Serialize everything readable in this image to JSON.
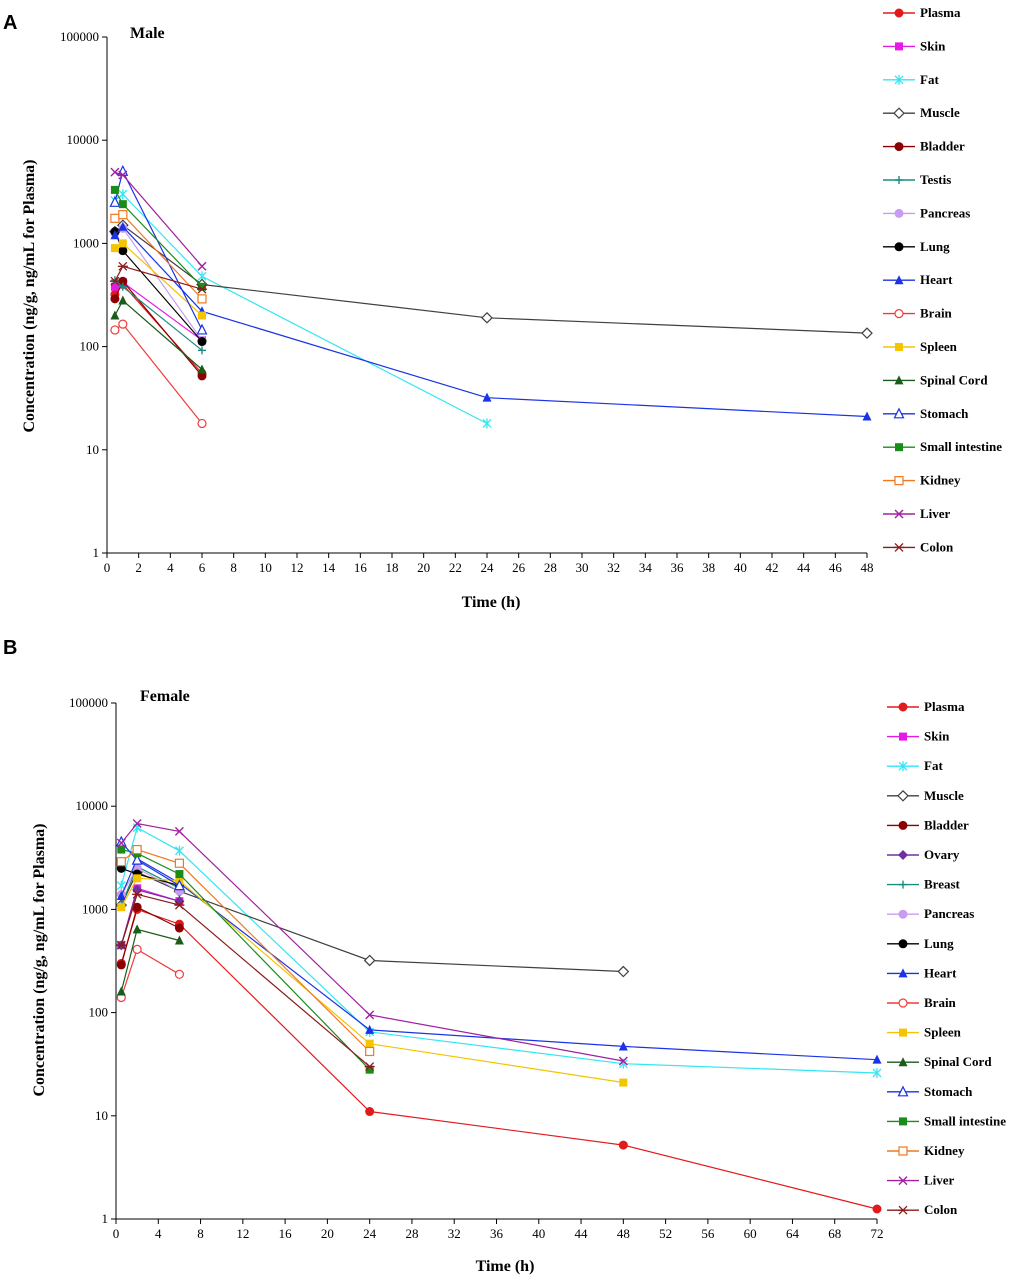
{
  "chart_data": [
    {
      "type": "line",
      "panel_label": "A",
      "title": "Male",
      "xlabel": "Time (h)",
      "ylabel": "Concentration  (ng/g, ng/mL  for Plasma)",
      "xlim": [
        0,
        48
      ],
      "ylim": [
        1,
        100000
      ],
      "yscale": "log",
      "xticks": [
        0,
        2,
        4,
        6,
        8,
        10,
        12,
        14,
        16,
        18,
        20,
        22,
        24,
        26,
        28,
        30,
        32,
        34,
        36,
        38,
        40,
        42,
        44,
        46,
        48
      ],
      "yticks": [
        1,
        10,
        100,
        1000,
        10000,
        100000
      ],
      "ytick_labels": [
        "1",
        "10",
        "100",
        "1000",
        "10000",
        "100000"
      ],
      "legend_position": "right",
      "series": [
        {
          "name": "Plasma",
          "color": "#e31a1c",
          "marker": "circle-filled",
          "x": [
            0.5,
            1,
            6
          ],
          "y": [
            320,
            400,
            55
          ]
        },
        {
          "name": "Skin",
          "color": "#e619e6",
          "marker": "square-filled",
          "x": [
            0.5,
            1,
            6
          ],
          "y": [
            380,
            420,
            115
          ]
        },
        {
          "name": "Fat",
          "color": "#33e6f2",
          "marker": "star",
          "x": [
            0.5,
            1,
            6,
            24
          ],
          "y": [
            2600,
            3000,
            480,
            18
          ]
        },
        {
          "name": "Muscle",
          "color": "#404040",
          "marker": "diamond-open",
          "x": [
            0.5,
            1,
            6,
            24,
            48
          ],
          "y": [
            1300,
            1500,
            400,
            190,
            135
          ]
        },
        {
          "name": "Bladder",
          "color": "#8b0000",
          "marker": "circle-filled",
          "x": [
            0.5,
            1,
            6
          ],
          "y": [
            290,
            430,
            52
          ]
        },
        {
          "name": "Testis",
          "color": "#1a8c80",
          "marker": "plus",
          "x": [
            0.5,
            1,
            6
          ],
          "y": [
            440,
            380,
            92
          ]
        },
        {
          "name": "Pancreas",
          "color": "#c89cf0",
          "marker": "circle-filled",
          "x": [
            0.5,
            1,
            6
          ],
          "y": [
            1250,
            1400,
            115
          ]
        },
        {
          "name": "Lung",
          "color": "#000000",
          "marker": "circle-filled",
          "x": [
            0.5,
            1,
            6
          ],
          "y": [
            1300,
            850,
            112
          ]
        },
        {
          "name": "Heart",
          "color": "#1a33e6",
          "marker": "triangle-filled",
          "x": [
            0.5,
            1,
            6,
            24,
            48
          ],
          "y": [
            1200,
            1450,
            220,
            32,
            21
          ]
        },
        {
          "name": "Brain",
          "color": "#f23a3a",
          "marker": "circle-open",
          "x": [
            0.5,
            1,
            6
          ],
          "y": [
            145,
            165,
            18
          ]
        },
        {
          "name": "Spleen",
          "color": "#f5c400",
          "marker": "square-filled",
          "x": [
            0.5,
            1,
            6
          ],
          "y": [
            900,
            1000,
            200
          ]
        },
        {
          "name": "Spinal Cord",
          "color": "#1a5c1a",
          "marker": "triangle-filled",
          "x": [
            0.5,
            1,
            6
          ],
          "y": [
            200,
            280,
            60
          ]
        },
        {
          "name": "Stomach",
          "color": "#1a33e6",
          "marker": "triangle-open",
          "x": [
            0.5,
            1,
            6
          ],
          "y": [
            2500,
            5000,
            145
          ]
        },
        {
          "name": "Small intestine",
          "color": "#1a8c1a",
          "marker": "square-filled",
          "x": [
            0.5,
            1,
            6
          ],
          "y": [
            3300,
            2400,
            380
          ]
        },
        {
          "name": "Kidney",
          "color": "#f07820",
          "marker": "square-open",
          "x": [
            0.5,
            1,
            6
          ],
          "y": [
            1750,
            1900,
            290
          ]
        },
        {
          "name": "Liver",
          "color": "#a020a0",
          "marker": "x",
          "x": [
            0.5,
            1,
            6
          ],
          "y": [
            4900,
            4600,
            600
          ]
        },
        {
          "name": "Colon",
          "color": "#8b1a1a",
          "marker": "asterisk",
          "x": [
            0.5,
            1,
            6
          ],
          "y": [
            430,
            600,
            360
          ]
        }
      ]
    },
    {
      "type": "line",
      "panel_label": "B",
      "title": "Female",
      "xlabel": "Time (h)",
      "ylabel": "Concentration  (ng/g, ng/mL  for Plasma)",
      "xlim": [
        0,
        72
      ],
      "ylim": [
        1,
        100000
      ],
      "yscale": "log",
      "xticks": [
        0,
        4,
        8,
        12,
        16,
        20,
        24,
        28,
        32,
        36,
        40,
        44,
        48,
        52,
        56,
        60,
        64,
        68,
        72
      ],
      "yticks": [
        1,
        10,
        100,
        1000,
        10000,
        100000
      ],
      "ytick_labels": [
        "1",
        "10",
        "100",
        "1000",
        "10000",
        "100000"
      ],
      "legend_position": "right",
      "series": [
        {
          "name": "Plasma",
          "color": "#e31a1c",
          "marker": "circle-filled",
          "x": [
            0.5,
            2,
            6,
            24,
            48,
            72
          ],
          "y": [
            300,
            1000,
            720,
            11,
            5.2,
            1.25
          ]
        },
        {
          "name": "Skin",
          "color": "#e619e6",
          "marker": "square-filled",
          "x": [
            0.5,
            2,
            6
          ],
          "y": [
            450,
            1600,
            1200
          ]
        },
        {
          "name": "Fat",
          "color": "#33e6f2",
          "marker": "star",
          "x": [
            0.5,
            2,
            6,
            24,
            48,
            72
          ],
          "y": [
            1700,
            6200,
            3700,
            65,
            32,
            26
          ]
        },
        {
          "name": "Muscle",
          "color": "#404040",
          "marker": "diamond-open",
          "x": [
            0.5,
            2,
            6,
            24,
            48
          ],
          "y": [
            1100,
            2300,
            1500,
            320,
            250
          ]
        },
        {
          "name": "Bladder",
          "color": "#8b0000",
          "marker": "circle-filled",
          "x": [
            0.5,
            2,
            6
          ],
          "y": [
            290,
            1050,
            660
          ]
        },
        {
          "name": "Ovary",
          "color": "#7030a0",
          "marker": "diamond-filled",
          "x": [
            0.5,
            2,
            6
          ],
          "y": [
            450,
            1550,
            1200
          ]
        },
        {
          "name": "Breast",
          "color": "#1a8c80",
          "marker": "plus",
          "x": [
            0.5,
            2,
            6
          ],
          "y": [
            1100,
            2600,
            1600
          ]
        },
        {
          "name": "Pancreas",
          "color": "#c89cf0",
          "marker": "circle-filled",
          "x": [
            0.5,
            2,
            6
          ],
          "y": [
            1400,
            2500,
            1500
          ]
        },
        {
          "name": "Lung",
          "color": "#000000",
          "marker": "circle-filled",
          "x": [
            0.5,
            2,
            6
          ],
          "y": [
            2500,
            2200,
            1700
          ]
        },
        {
          "name": "Heart",
          "color": "#1a33e6",
          "marker": "triangle-filled",
          "x": [
            0.5,
            2,
            6,
            24,
            48,
            72
          ],
          "y": [
            1350,
            3100,
            1800,
            68,
            47,
            35
          ]
        },
        {
          "name": "Brain",
          "color": "#f23a3a",
          "marker": "circle-open",
          "x": [
            0.5,
            2,
            6
          ],
          "y": [
            140,
            410,
            235
          ]
        },
        {
          "name": "Spleen",
          "color": "#f5c400",
          "marker": "square-filled",
          "x": [
            0.5,
            2,
            6,
            24,
            48
          ],
          "y": [
            1050,
            2000,
            1900,
            50,
            21
          ]
        },
        {
          "name": "Spinal Cord",
          "color": "#1a5c1a",
          "marker": "triangle-filled",
          "x": [
            0.5,
            2,
            6
          ],
          "y": [
            160,
            640,
            500
          ]
        },
        {
          "name": "Stomach",
          "color": "#1a33e6",
          "marker": "triangle-open",
          "x": [
            0.5,
            2,
            6
          ],
          "y": [
            4500,
            3000,
            1700
          ]
        },
        {
          "name": "Small intestine",
          "color": "#1a8c1a",
          "marker": "square-filled",
          "x": [
            0.5,
            2,
            6,
            24
          ],
          "y": [
            3800,
            3500,
            2200,
            28
          ]
        },
        {
          "name": "Kidney",
          "color": "#f07820",
          "marker": "square-open",
          "x": [
            0.5,
            2,
            6,
            24
          ],
          "y": [
            2900,
            3800,
            2800,
            42
          ]
        },
        {
          "name": "Liver",
          "color": "#a020a0",
          "marker": "x",
          "x": [
            0.5,
            2,
            6,
            24,
            48
          ],
          "y": [
            4400,
            6800,
            5700,
            95,
            34
          ]
        },
        {
          "name": "Colon",
          "color": "#8b1a1a",
          "marker": "asterisk",
          "x": [
            0.5,
            2,
            6,
            24
          ],
          "y": [
            450,
            1400,
            1100,
            30
          ]
        }
      ]
    }
  ]
}
